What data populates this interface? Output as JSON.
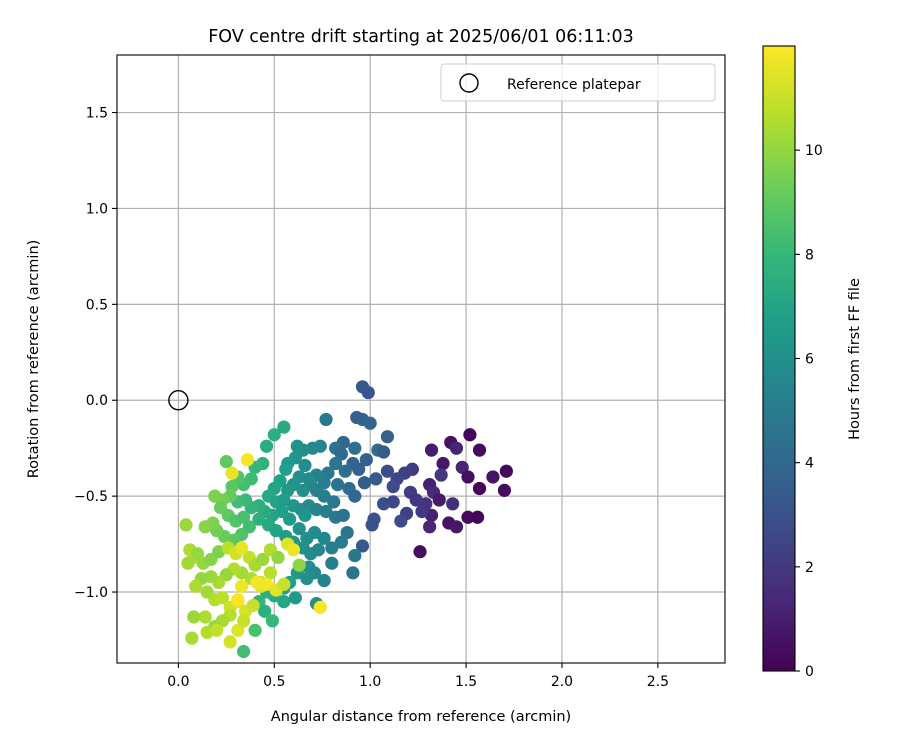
{
  "chart_data": {
    "type": "scatter",
    "title": "FOV centre drift starting at 2025/06/01 06:11:03",
    "xlabel": "Angular distance from reference (arcmin)",
    "ylabel": "Rotation from reference (arcmin)",
    "xlim": [
      -0.32,
      2.85
    ],
    "ylim": [
      -1.37,
      1.8
    ],
    "xticks": [
      0.0,
      0.5,
      1.0,
      1.5,
      2.0,
      2.5
    ],
    "xtick_labels": [
      "0.0",
      "0.5",
      "1.0",
      "1.5",
      "2.0",
      "2.5"
    ],
    "yticks": [
      -1.0,
      -0.5,
      0.0,
      0.5,
      1.0,
      1.5
    ],
    "ytick_labels": [
      "−1.0",
      "−0.5",
      "0.0",
      "0.5",
      "1.0",
      "1.5"
    ],
    "grid": true,
    "legend": {
      "position": "top-right",
      "entries": [
        "Reference platepar"
      ]
    },
    "reference_point": {
      "x": 0.0,
      "y": 0.0,
      "label": "Reference platepar",
      "marker": "open-circle"
    },
    "colorbar": {
      "label": "Hours from first FF file",
      "colormap": "viridis",
      "range": [
        0,
        12
      ],
      "ticks": [
        0,
        2,
        4,
        6,
        8,
        10
      ],
      "tick_labels": [
        "0",
        "2",
        "4",
        "6",
        "8",
        "10"
      ]
    },
    "colormap_stops": [
      "#440154",
      "#482878",
      "#3e4989",
      "#31688e",
      "#26828e",
      "#1f9e89",
      "#35b779",
      "#6ece58",
      "#b5de2b",
      "#fde725"
    ],
    "points": [
      [
        1.52,
        -0.18,
        0.2
      ],
      [
        1.42,
        -0.22,
        0.6
      ],
      [
        1.57,
        -0.26,
        0.4
      ],
      [
        1.32,
        -0.26,
        1.0
      ],
      [
        1.45,
        -0.25,
        1.2
      ],
      [
        1.38,
        -0.33,
        0.8
      ],
      [
        1.48,
        -0.35,
        1.3
      ],
      [
        1.31,
        -0.44,
        1.1
      ],
      [
        1.51,
        -0.4,
        0.5
      ],
      [
        1.33,
        -0.48,
        1.4
      ],
      [
        1.71,
        -0.37,
        0.3
      ],
      [
        1.64,
        -0.4,
        0.7
      ],
      [
        1.7,
        -0.47,
        0.4
      ],
      [
        1.57,
        -0.46,
        0.2
      ],
      [
        1.36,
        -0.52,
        0.9
      ],
      [
        1.43,
        -0.54,
        1.6
      ],
      [
        1.29,
        -0.54,
        1.8
      ],
      [
        1.41,
        -0.64,
        0.6
      ],
      [
        1.45,
        -0.66,
        0.8
      ],
      [
        1.51,
        -0.61,
        0.3
      ],
      [
        1.56,
        -0.61,
        0.1
      ],
      [
        1.32,
        -0.6,
        1.1
      ],
      [
        1.31,
        -0.66,
        1.3
      ],
      [
        1.26,
        -0.79,
        0.5
      ],
      [
        1.37,
        -0.39,
        1.9
      ],
      [
        1.22,
        -0.36,
        2.1
      ],
      [
        1.18,
        -0.38,
        2.3
      ],
      [
        1.14,
        -0.41,
        2.5
      ],
      [
        1.21,
        -0.48,
        2.2
      ],
      [
        1.24,
        -0.52,
        1.9
      ],
      [
        1.27,
        -0.58,
        2.0
      ],
      [
        1.12,
        -0.53,
        2.6
      ],
      [
        1.19,
        -0.59,
        2.4
      ],
      [
        1.16,
        -0.63,
        2.8
      ],
      [
        1.07,
        -0.54,
        2.9
      ],
      [
        1.02,
        -0.62,
        3.1
      ],
      [
        1.01,
        -0.65,
        3.0
      ],
      [
        0.96,
        -0.76,
        3.3
      ],
      [
        1.09,
        -0.37,
        2.9
      ],
      [
        1.12,
        -0.45,
        2.7
      ],
      [
        0.96,
        0.07,
        3.4
      ],
      [
        0.99,
        0.04,
        3.2
      ],
      [
        0.93,
        -0.09,
        3.6
      ],
      [
        0.96,
        -0.1,
        3.8
      ],
      [
        1.0,
        -0.12,
        3.9
      ],
      [
        1.09,
        -0.19,
        3.7
      ],
      [
        1.04,
        -0.26,
        4.2
      ],
      [
        1.07,
        -0.27,
        3.5
      ],
      [
        0.92,
        -0.25,
        4.4
      ],
      [
        0.86,
        -0.22,
        4.0
      ],
      [
        0.82,
        -0.25,
        4.6
      ],
      [
        0.85,
        -0.28,
        4.1
      ],
      [
        0.91,
        -0.33,
        3.9
      ],
      [
        0.94,
        -0.36,
        3.7
      ],
      [
        0.98,
        -0.31,
        3.6
      ],
      [
        0.87,
        -0.37,
        4.3
      ],
      [
        0.82,
        -0.33,
        4.7
      ],
      [
        0.78,
        -0.38,
        4.8
      ],
      [
        0.83,
        -0.44,
        4.5
      ],
      [
        0.76,
        -0.43,
        5.0
      ],
      [
        0.89,
        -0.46,
        4.2
      ],
      [
        0.97,
        -0.43,
        3.5
      ],
      [
        1.03,
        -0.41,
        3.4
      ],
      [
        0.92,
        -0.5,
        4.0
      ],
      [
        0.81,
        -0.53,
        4.9
      ],
      [
        0.76,
        -0.5,
        5.2
      ],
      [
        0.72,
        -0.47,
        5.1
      ],
      [
        0.69,
        -0.44,
        5.4
      ],
      [
        0.72,
        -0.39,
        5.3
      ],
      [
        0.77,
        -0.1,
        4.8
      ],
      [
        0.74,
        -0.24,
        5.5
      ],
      [
        0.7,
        -0.25,
        5.6
      ],
      [
        0.65,
        -0.26,
        5.9
      ],
      [
        0.62,
        -0.24,
        6.1
      ],
      [
        0.61,
        -0.3,
        6.3
      ],
      [
        0.57,
        -0.33,
        6.5
      ],
      [
        0.56,
        -0.36,
        6.7
      ],
      [
        0.66,
        -0.34,
        5.8
      ],
      [
        0.63,
        -0.4,
        6.0
      ],
      [
        0.68,
        -0.41,
        5.7
      ],
      [
        0.6,
        -0.44,
        6.2
      ],
      [
        0.65,
        -0.47,
        5.9
      ],
      [
        0.57,
        -0.47,
        6.4
      ],
      [
        0.53,
        -0.42,
        6.8
      ],
      [
        0.5,
        -0.46,
        7.0
      ],
      [
        0.47,
        -0.5,
        7.2
      ],
      [
        0.51,
        -0.53,
        7.0
      ],
      [
        0.55,
        -0.52,
        6.6
      ],
      [
        0.6,
        -0.55,
        6.3
      ],
      [
        0.64,
        -0.57,
        6.0
      ],
      [
        0.68,
        -0.55,
        5.8
      ],
      [
        0.72,
        -0.57,
        5.5
      ],
      [
        0.77,
        -0.58,
        5.1
      ],
      [
        0.82,
        -0.61,
        4.8
      ],
      [
        0.86,
        -0.6,
        4.6
      ],
      [
        0.88,
        -0.69,
        4.7
      ],
      [
        0.85,
        -0.74,
        5.0
      ],
      [
        0.8,
        -0.77,
        5.2
      ],
      [
        0.76,
        -0.72,
        5.5
      ],
      [
        0.71,
        -0.69,
        5.7
      ],
      [
        0.67,
        -0.72,
        5.9
      ],
      [
        0.63,
        -0.67,
        6.1
      ],
      [
        0.58,
        -0.62,
        6.5
      ],
      [
        0.54,
        -0.58,
        6.7
      ],
      [
        0.49,
        -0.6,
        7.0
      ],
      [
        0.45,
        -0.58,
        7.3
      ],
      [
        0.42,
        -0.55,
        7.5
      ],
      [
        0.38,
        -0.56,
        7.8
      ],
      [
        0.35,
        -0.52,
        8.1
      ],
      [
        0.31,
        -0.53,
        8.3
      ],
      [
        0.42,
        -0.62,
        7.6
      ],
      [
        0.47,
        -0.65,
        7.2
      ],
      [
        0.51,
        -0.68,
        6.9
      ],
      [
        0.56,
        -0.71,
        6.6
      ],
      [
        0.6,
        -0.74,
        6.3
      ],
      [
        0.65,
        -0.77,
        6.0
      ],
      [
        0.69,
        -0.8,
        5.8
      ],
      [
        0.73,
        -0.78,
        5.6
      ],
      [
        0.68,
        -0.87,
        5.9
      ],
      [
        0.62,
        -0.9,
        6.4
      ],
      [
        0.58,
        -0.95,
        6.7
      ],
      [
        0.55,
        -0.98,
        7.0
      ],
      [
        0.5,
        -1.02,
        7.3
      ],
      [
        0.46,
        -1.0,
        7.5
      ],
      [
        0.42,
        -1.05,
        7.8
      ],
      [
        0.45,
        -1.1,
        7.6
      ],
      [
        0.55,
        -1.05,
        7.1
      ],
      [
        0.61,
        -1.03,
        6.5
      ],
      [
        0.72,
        -1.06,
        5.9
      ],
      [
        0.76,
        -0.94,
        5.4
      ],
      [
        0.91,
        -0.9,
        4.6
      ],
      [
        0.92,
        -0.81,
        4.8
      ],
      [
        0.8,
        -0.85,
        5.1
      ],
      [
        0.46,
        -0.24,
        7.4
      ],
      [
        0.5,
        -0.18,
        7.6
      ],
      [
        0.55,
        -0.14,
        7.3
      ],
      [
        0.44,
        -0.33,
        7.7
      ],
      [
        0.4,
        -0.35,
        8.0
      ],
      [
        0.38,
        -0.41,
        8.2
      ],
      [
        0.34,
        -0.44,
        8.4
      ],
      [
        0.31,
        -0.4,
        8.7
      ],
      [
        0.28,
        -0.45,
        8.9
      ],
      [
        0.27,
        -0.5,
        9.1
      ],
      [
        0.23,
        -0.52,
        9.4
      ],
      [
        0.19,
        -0.5,
        9.6
      ],
      [
        0.22,
        -0.56,
        9.2
      ],
      [
        0.26,
        -0.6,
        9.0
      ],
      [
        0.3,
        -0.63,
        8.7
      ],
      [
        0.34,
        -0.61,
        8.5
      ],
      [
        0.37,
        -0.66,
        8.3
      ],
      [
        0.33,
        -0.7,
        8.6
      ],
      [
        0.29,
        -0.73,
        8.9
      ],
      [
        0.24,
        -0.71,
        9.2
      ],
      [
        0.2,
        -0.68,
        9.4
      ],
      [
        0.18,
        -0.64,
        9.6
      ],
      [
        0.14,
        -0.66,
        9.8
      ],
      [
        0.04,
        -0.65,
        10.2
      ],
      [
        0.06,
        -0.78,
        10.5
      ],
      [
        0.08,
        -0.82,
        10.6
      ],
      [
        0.05,
        -0.85,
        10.3
      ],
      [
        0.1,
        -0.8,
        10.1
      ],
      [
        0.13,
        -0.85,
        10.0
      ],
      [
        0.17,
        -0.83,
        9.8
      ],
      [
        0.21,
        -0.79,
        9.6
      ],
      [
        0.26,
        -0.77,
        10.8
      ],
      [
        0.3,
        -0.8,
        11.2
      ],
      [
        0.33,
        -0.77,
        11.6
      ],
      [
        0.37,
        -0.82,
        10.9
      ],
      [
        0.4,
        -0.86,
        10.4
      ],
      [
        0.44,
        -0.83,
        10.2
      ],
      [
        0.48,
        -0.78,
        10.6
      ],
      [
        0.52,
        -0.82,
        10.0
      ],
      [
        0.57,
        -0.75,
        11.4
      ],
      [
        0.6,
        -0.78,
        11.7
      ],
      [
        0.63,
        -0.86,
        9.9
      ],
      [
        0.48,
        -0.9,
        10.7
      ],
      [
        0.43,
        -0.95,
        11.0
      ],
      [
        0.38,
        -0.93,
        10.5
      ],
      [
        0.33,
        -0.9,
        10.3
      ],
      [
        0.29,
        -0.88,
        10.6
      ],
      [
        0.25,
        -0.91,
        10.1
      ],
      [
        0.21,
        -0.95,
        10.4
      ],
      [
        0.17,
        -0.92,
        10.2
      ],
      [
        0.12,
        -0.93,
        10.0
      ],
      [
        0.09,
        -0.97,
        10.5
      ],
      [
        0.15,
        -1.0,
        10.3
      ],
      [
        0.19,
        -1.04,
        10.6
      ],
      [
        0.23,
        -1.03,
        10.8
      ],
      [
        0.27,
        -1.08,
        11.1
      ],
      [
        0.31,
        -1.05,
        11.5
      ],
      [
        0.35,
        -1.1,
        11.3
      ],
      [
        0.39,
        -1.07,
        11.0
      ],
      [
        0.43,
        -0.97,
        11.4
      ],
      [
        0.46,
        -0.96,
        11.8
      ],
      [
        0.51,
        -0.99,
        11.5
      ],
      [
        0.55,
        -0.96,
        11.0
      ],
      [
        0.33,
        -0.97,
        11.7
      ],
      [
        0.27,
        -1.12,
        10.7
      ],
      [
        0.23,
        -1.15,
        10.4
      ],
      [
        0.19,
        -1.18,
        10.1
      ],
      [
        0.14,
        -1.13,
        10.5
      ],
      [
        0.08,
        -1.13,
        10.2
      ],
      [
        0.07,
        -1.24,
        10.4
      ],
      [
        0.15,
        -1.21,
        10.6
      ],
      [
        0.2,
        -1.2,
        10.9
      ],
      [
        0.27,
        -1.26,
        11.2
      ],
      [
        0.31,
        -1.2,
        11.4
      ],
      [
        0.34,
        -1.15,
        11.0
      ],
      [
        0.4,
        -1.2,
        8.5
      ],
      [
        0.49,
        -1.15,
        8.0
      ],
      [
        0.34,
        -1.31,
        8.3
      ],
      [
        0.25,
        -0.32,
        9.0
      ],
      [
        0.36,
        -0.31,
        11.9
      ],
      [
        0.28,
        -0.38,
        11.6
      ],
      [
        0.31,
        -1.04,
        11.9
      ],
      [
        0.41,
        -0.95,
        11.8
      ],
      [
        0.71,
        -0.9,
        5.7
      ],
      [
        0.67,
        -0.93,
        6.0
      ],
      [
        0.74,
        -1.08,
        11.9
      ],
      [
        0.66,
        -0.6,
        6.2
      ]
    ]
  }
}
